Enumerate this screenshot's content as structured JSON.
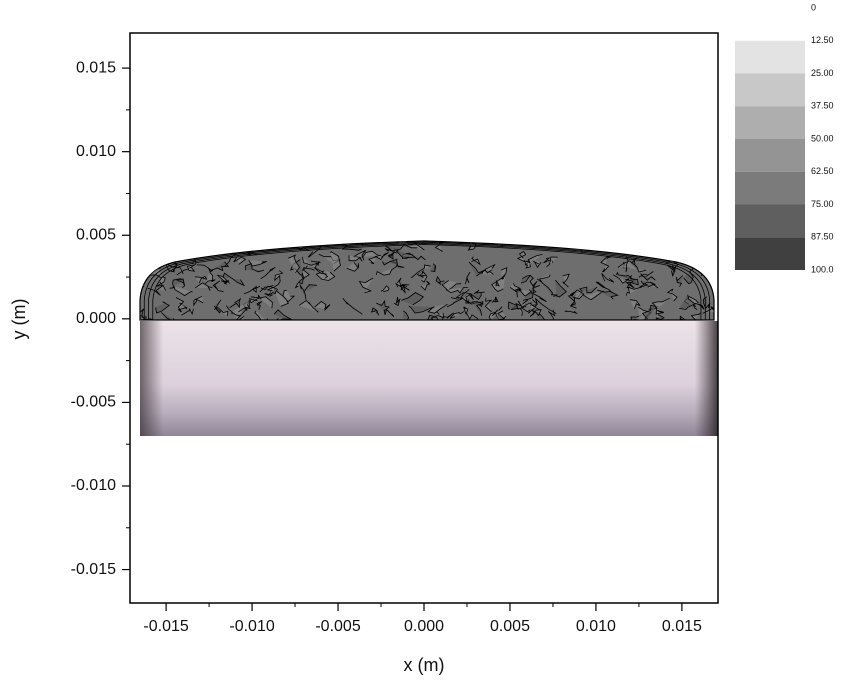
{
  "chart_data": {
    "type": "contour",
    "xlabel": "x (m)",
    "ylabel": "y (m)",
    "xlim": [
      -0.0171,
      0.0171
    ],
    "ylim": [
      -0.017,
      0.0171
    ],
    "xticks": [
      -0.015,
      {
        "value": -0.01,
        "label": "-0.010"
      },
      -0.005,
      {
        "value": 0,
        "label": "0.000"
      },
      0.005,
      {
        "value": 0.01,
        "label": "0.010"
      },
      0.015
    ],
    "yticks": [
      -0.015,
      {
        "value": -0.01,
        "label": "-0.010"
      },
      -0.005,
      {
        "value": 0,
        "label": "0.000"
      },
      0.005,
      {
        "value": 0.01,
        "label": "0.010"
      },
      0.015
    ],
    "colorbar": {
      "levels": [
        0,
        {
          "value": 12.5,
          "label": "12.50"
        },
        {
          "value": 25,
          "label": "25.00"
        },
        {
          "value": 37.5,
          "label": "37.50"
        },
        {
          "value": 50,
          "label": "50.00"
        },
        {
          "value": 62.5,
          "label": "62.50"
        },
        {
          "value": 75,
          "label": "75.00"
        },
        {
          "value": 87.5,
          "label": "87.50"
        },
        {
          "value": 100,
          "label": "100.0"
        }
      ],
      "colors": [
        "#ffffff",
        "#e3e3e3",
        "#c8c8c8",
        "#aeaeae",
        "#949494",
        "#7b7b7b",
        "#5f5f5f",
        "#404040"
      ]
    }
  }
}
